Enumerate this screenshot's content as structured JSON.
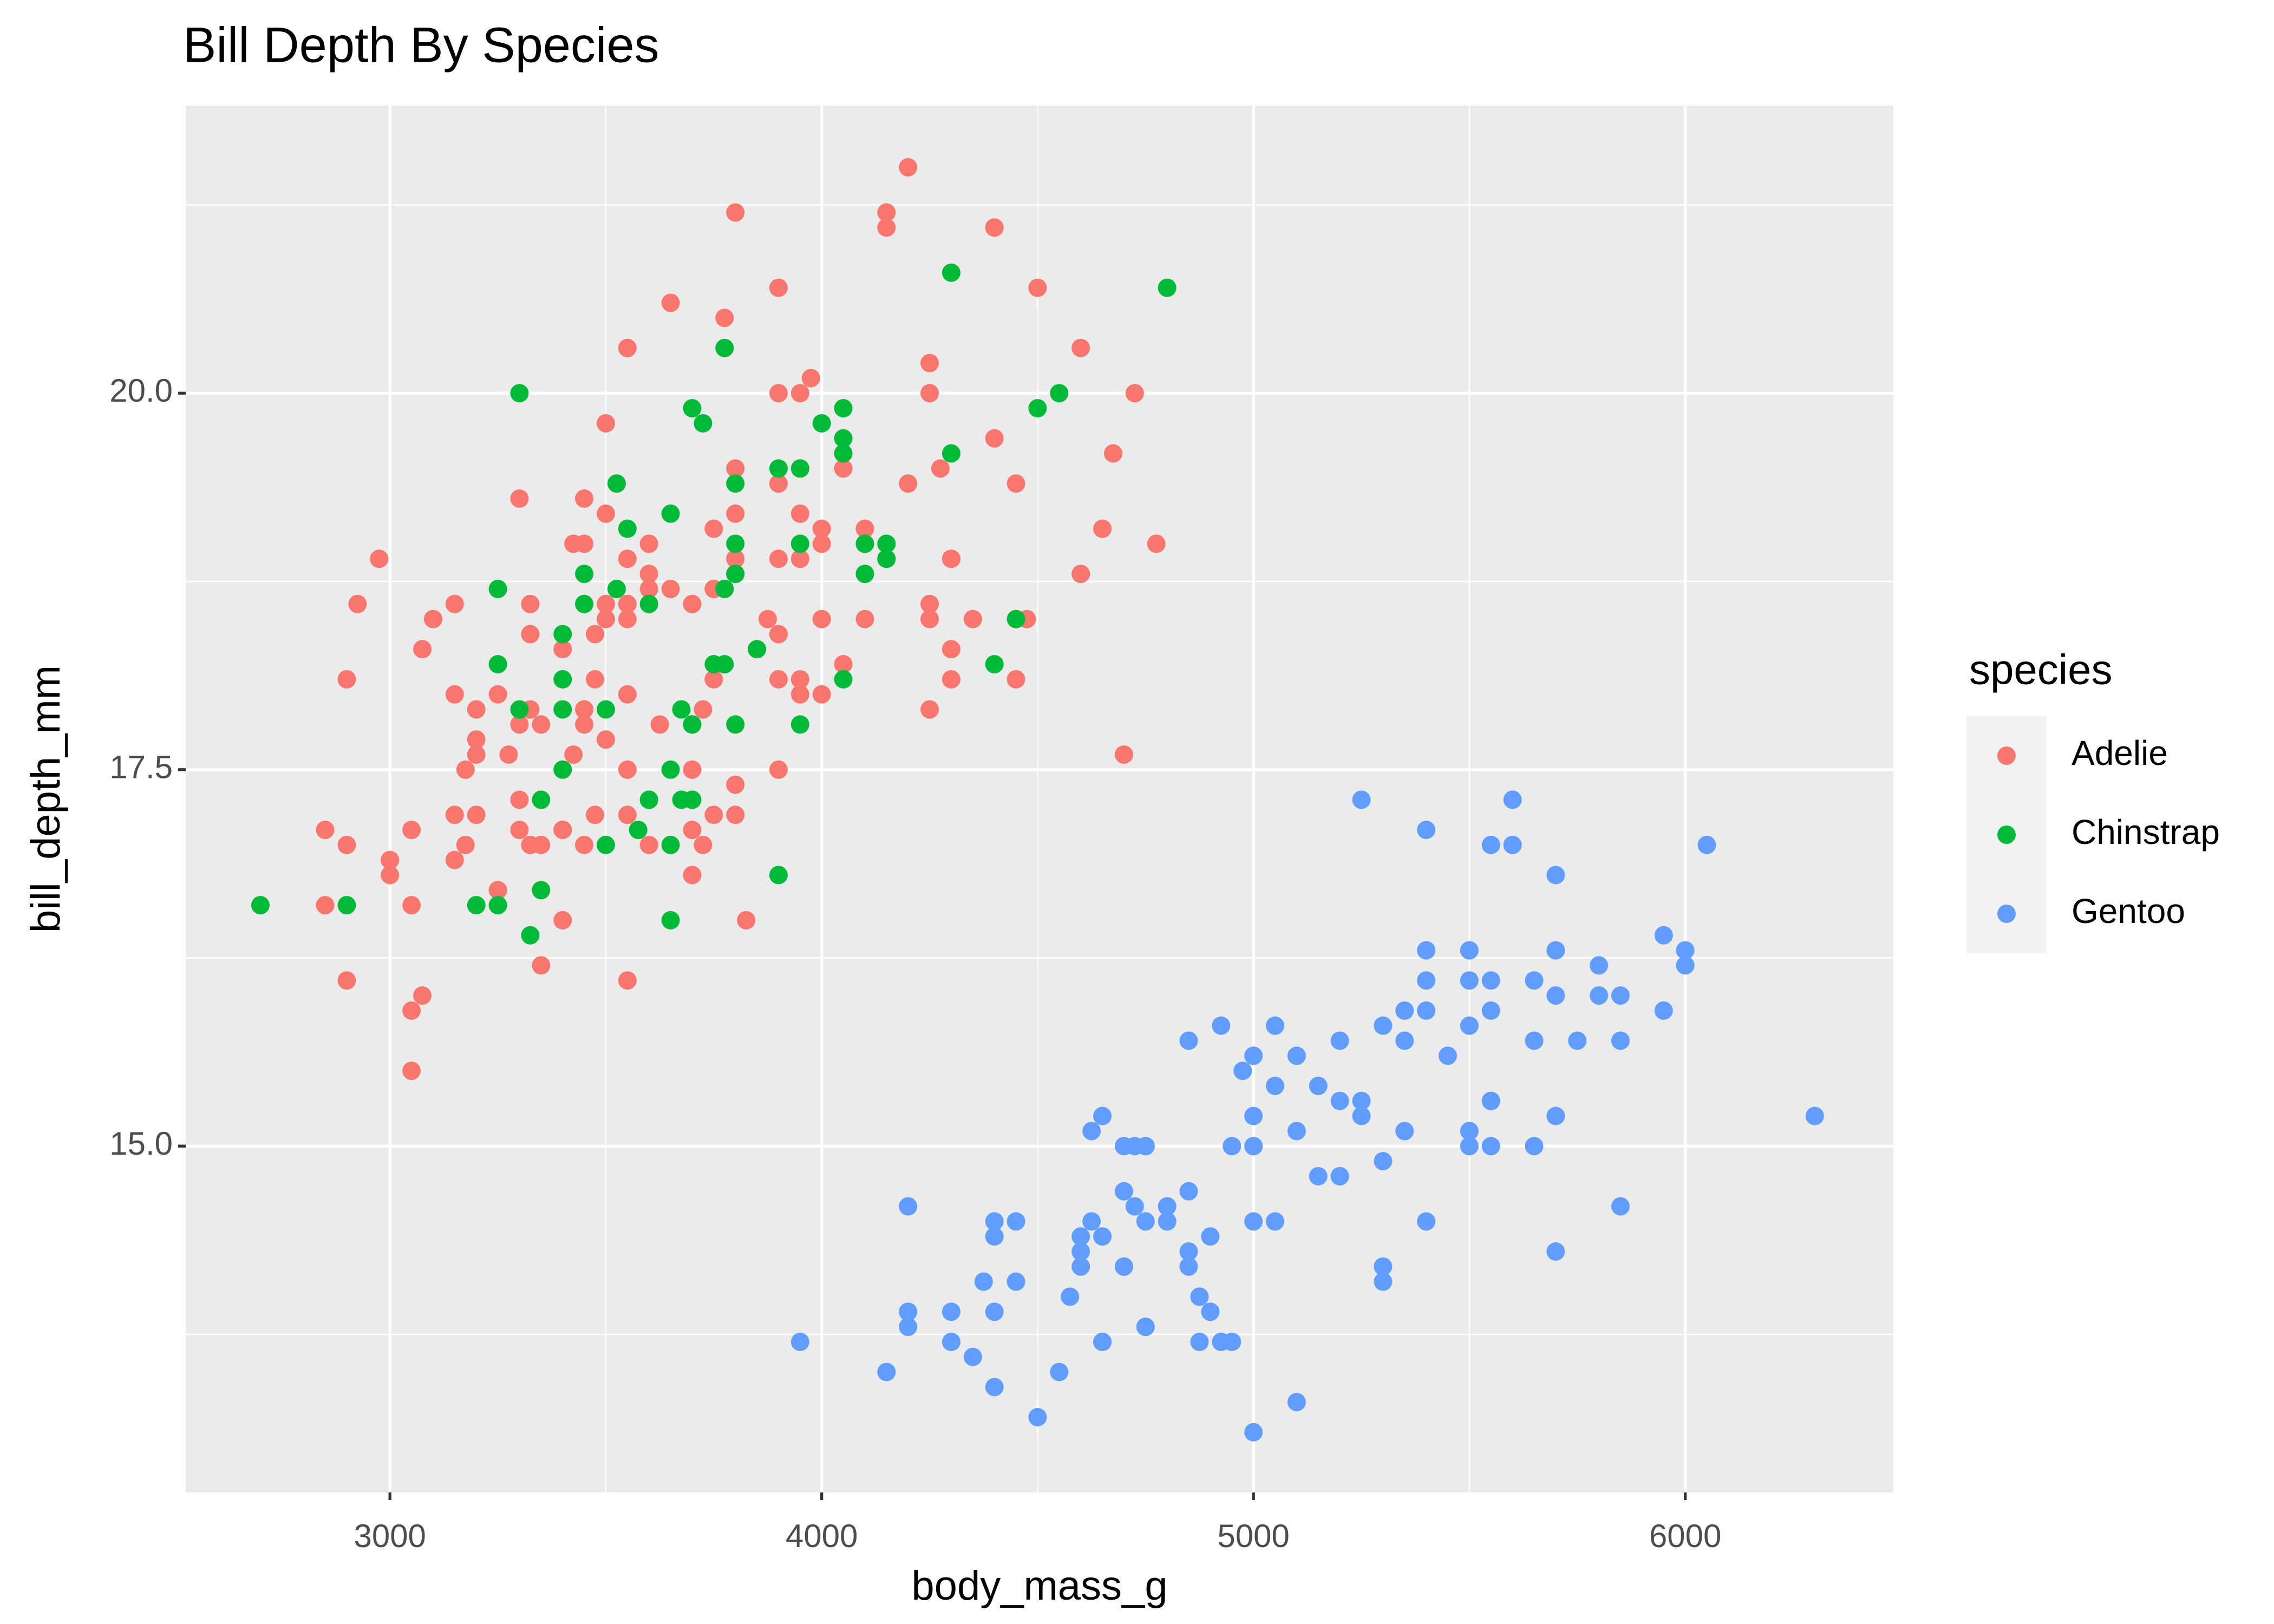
{
  "chart_data": {
    "type": "scatter",
    "title": "Bill Depth By Species",
    "x_label": "body_mass_g",
    "y_label": "bill_depth_mm",
    "legend_title": "species",
    "legend_position": "right",
    "grid": true,
    "background": "#EBEBEB",
    "xlim": [
      2527,
      6482
    ],
    "ylim": [
      12.7,
      21.91
    ],
    "xticks": [
      3000,
      4000,
      5000,
      6000
    ],
    "yticks": [
      {
        "value": 15,
        "label": "15.0"
      },
      {
        "value": 17.5,
        "label": "17.5"
      },
      {
        "value": 20,
        "label": "20.0"
      }
    ],
    "series": [
      {
        "name": "Adelie",
        "color": "#F8766D",
        "x": [
          3750,
          3800,
          3250,
          3450,
          3650,
          3625,
          4675,
          3475,
          4250,
          3300,
          3700,
          3200,
          3800,
          4400,
          3700,
          3450,
          4500,
          3325,
          4200,
          3400,
          3600,
          3800,
          3950,
          3800,
          3800,
          3550,
          3200,
          3150,
          3950,
          3250,
          3900,
          3300,
          3900,
          3325,
          4150,
          3950,
          3550,
          3300,
          4650,
          3150,
          3900,
          3100,
          4400,
          3000,
          4600,
          3425,
          2975,
          3450,
          4150,
          3500,
          4300,
          3450,
          4050,
          2900,
          3700,
          3550,
          3800,
          2850,
          3750,
          3150,
          4400,
          3600,
          4050,
          2850,
          3950,
          3350,
          4100,
          3050,
          4450,
          3600,
          3900,
          3550,
          4150,
          3700,
          4250,
          3700,
          3900,
          3550,
          4000,
          3200,
          4700,
          3800,
          4200,
          3350,
          3550,
          3800,
          3500,
          3950,
          3600,
          3550,
          4300,
          3400,
          4450,
          3300,
          4300,
          3700,
          4350,
          2900,
          4100,
          3725,
          4725,
          3075,
          4250,
          2925,
          3550,
          3750,
          3900,
          3175,
          4775,
          3825,
          4600,
          3200,
          4275,
          3900,
          3075,
          2900,
          3775,
          3350,
          3325,
          3150,
          3500,
          3450,
          3875,
          3050,
          4000,
          3275,
          4300,
          3050,
          4000,
          3325,
          3500,
          3500,
          4475,
          3425,
          3900,
          3175,
          3975,
          3400,
          4250,
          3400,
          3475,
          3050,
          3725,
          3000,
          3650,
          4250,
          3475,
          3450,
          3750,
          3700,
          4000
        ],
        "values": [
          18.7,
          17.4,
          18.0,
          19.3,
          20.6,
          17.8,
          19.6,
          18.1,
          20.2,
          17.1,
          17.3,
          17.6,
          21.2,
          21.1,
          17.8,
          19.0,
          20.7,
          18.4,
          21.5,
          18.3,
          18.7,
          19.2,
          18.1,
          17.2,
          18.9,
          18.6,
          17.9,
          18.6,
          18.9,
          16.7,
          18.1,
          17.8,
          18.9,
          17.0,
          21.1,
          20.0,
          18.5,
          19.3,
          19.1,
          18.0,
          18.4,
          18.5,
          19.7,
          16.9,
          18.8,
          19.0,
          18.9,
          17.9,
          21.2,
          17.7,
          18.9,
          17.9,
          19.5,
          18.1,
          18.6,
          17.5,
          18.8,
          16.6,
          19.1,
          16.9,
          21.1,
          17.0,
          18.2,
          17.1,
          18.0,
          16.2,
          19.1,
          16.6,
          19.4,
          19.0,
          18.4,
          17.2,
          18.9,
          17.5,
          18.5,
          16.8,
          19.4,
          16.1,
          19.1,
          17.2,
          17.6,
          18.8,
          19.4,
          17.8,
          20.3,
          19.5,
          18.6,
          19.2,
          18.8,
          18.0,
          18.1,
          17.1,
          18.1,
          17.3,
          18.9,
          18.6,
          18.5,
          16.1,
          18.5,
          17.9,
          20.0,
          16.0,
          20.0,
          18.6,
          18.9,
          17.2,
          20.0,
          17.0,
          19.0,
          16.5,
          20.3,
          17.7,
          19.5,
          20.7,
          18.3,
          17.0,
          20.5,
          17.0,
          18.6,
          17.2,
          19.8,
          17.0,
          18.5,
          15.9,
          19.0,
          17.6,
          18.3,
          17.1,
          18.0,
          17.9,
          19.2,
          18.5,
          18.5,
          17.6,
          17.5,
          17.5,
          20.1,
          16.5,
          17.9,
          17.1,
          17.2,
          15.5,
          17.0,
          16.8,
          18.7,
          18.6,
          18.4,
          17.8,
          18.1,
          17.1,
          18.5
        ]
      },
      {
        "name": "Chinstrap",
        "color": "#00BA38",
        "x": [
          3500,
          3900,
          3650,
          3525,
          3725,
          3950,
          3250,
          3750,
          4150,
          3700,
          3800,
          3775,
          3700,
          4050,
          3575,
          4050,
          3300,
          3700,
          3450,
          4400,
          3600,
          3400,
          2900,
          3800,
          3300,
          4150,
          3400,
          3800,
          3700,
          4550,
          3200,
          4300,
          3350,
          4100,
          3600,
          3900,
          3850,
          4800,
          2700,
          4500,
          3950,
          3650,
          3550,
          3500,
          3675,
          4450,
          3400,
          4300,
          3250,
          3675,
          3325,
          3950,
          3600,
          4050,
          3350,
          3450,
          3250,
          4050,
          3800,
          3525,
          3950,
          3650,
          3650,
          4000,
          3400,
          3775,
          4100,
          3775
        ],
        "values": [
          17.9,
          19.5,
          19.2,
          18.7,
          19.8,
          17.8,
          18.2,
          18.2,
          18.9,
          19.9,
          17.8,
          20.3,
          17.3,
          18.1,
          17.1,
          19.6,
          20.0,
          17.8,
          18.6,
          18.2,
          17.3,
          17.5,
          16.6,
          19.4,
          17.9,
          19.0,
          18.4,
          19.0,
          17.8,
          20.0,
          16.6,
          20.8,
          16.7,
          18.8,
          18.6,
          16.8,
          18.3,
          20.7,
          16.6,
          19.9,
          19.5,
          17.5,
          19.1,
          17.0,
          17.9,
          18.5,
          17.9,
          19.6,
          18.7,
          17.3,
          16.4,
          19.0,
          17.3,
          19.7,
          17.3,
          18.8,
          16.6,
          19.9,
          18.8,
          19.4,
          19.5,
          16.5,
          17.0,
          19.8,
          18.1,
          18.2,
          19.0,
          18.7
        ]
      },
      {
        "name": "Gentoo",
        "color": "#619CFF",
        "x": [
          4500,
          5700,
          4450,
          5700,
          5400,
          4550,
          4800,
          5200,
          4400,
          5150,
          4650,
          5550,
          4650,
          5850,
          4200,
          5850,
          4150,
          6300,
          4800,
          5350,
          5700,
          5000,
          4400,
          5050,
          5000,
          5100,
          5650,
          4600,
          5550,
          5250,
          4700,
          5050,
          6050,
          5150,
          5400,
          4950,
          5250,
          4350,
          5350,
          3950,
          5700,
          4300,
          4750,
          5550,
          4900,
          4200,
          5400,
          5100,
          5300,
          4850,
          5300,
          4400,
          5000,
          4900,
          5050,
          4300,
          5000,
          4450,
          5550,
          4200,
          5300,
          4400,
          5650,
          4700,
          5700,
          4650,
          5800,
          4700,
          5550,
          4750,
          5000,
          5100,
          5200,
          4700,
          5800,
          4600,
          6000,
          4750,
          5950,
          4625,
          5450,
          4725,
          5350,
          4750,
          5600,
          4600,
          5300,
          4875,
          5550,
          4950,
          5400,
          4750,
          5650,
          4850,
          5200,
          4925,
          4875,
          4625,
          5250,
          4850,
          5600,
          4975,
          5500,
          4725,
          5500,
          4700,
          5500,
          4575,
          5500,
          5000,
          5950,
          4650,
          5500,
          4375,
          5850,
          4875,
          6000,
          4925,
          4850,
          5750,
          5200,
          5400
        ],
        "values": [
          13.2,
          16.3,
          14.1,
          15.2,
          14.5,
          13.5,
          14.6,
          15.3,
          13.4,
          15.4,
          13.7,
          16.1,
          13.7,
          14.6,
          14.6,
          15.7,
          13.5,
          15.2,
          14.5,
          15.1,
          14.3,
          14.5,
          14.5,
          15.8,
          13.1,
          15.1,
          15.0,
          14.3,
          15.3,
          15.3,
          14.2,
          14.5,
          17.0,
          14.8,
          16.3,
          13.7,
          17.3,
          13.6,
          15.7,
          13.7,
          16.0,
          13.7,
          15.0,
          15.9,
          13.9,
          13.9,
          15.9,
          13.3,
          15.8,
          14.2,
          14.1,
          14.4,
          15.0,
          14.4,
          15.4,
          13.9,
          15.0,
          14.5,
          15.3,
          13.8,
          14.9,
          13.9,
          15.7,
          14.2,
          16.8,
          14.4,
          16.2,
          14.2,
          15.0,
          15.0,
          15.6,
          15.6,
          14.8,
          15.0,
          16.0,
          14.2,
          16.3,
          13.8,
          16.4,
          14.5,
          15.6,
          14.6,
          15.9,
          13.8,
          17.3,
          14.4,
          14.2,
          14.0,
          17.0,
          15.0,
          17.1,
          14.5,
          16.1,
          14.7,
          15.7,
          15.8,
          14.0,
          15.1,
          15.2,
          15.7,
          17.0,
          15.5,
          15.0,
          15.0,
          16.1,
          14.7,
          15.8,
          14.0,
          15.1,
          15.2,
          15.9,
          15.2,
          16.3,
          14.1,
          16.0,
          13.7,
          16.2,
          13.7,
          14.3,
          15.7,
          14.8,
          16.1
        ]
      }
    ]
  }
}
